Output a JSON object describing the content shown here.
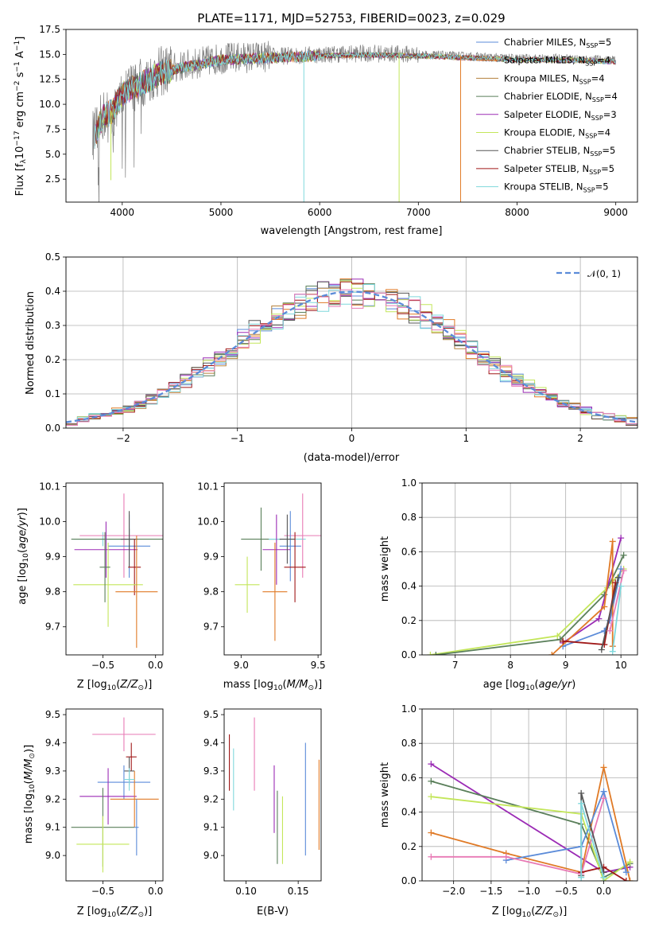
{
  "colors": {
    "chabrier_miles": "#5b8bd9",
    "salpeter_miles": "#e07a26",
    "kroupa_miles": "#b5813b",
    "chabrier_elodie": "#5a7f5a",
    "salpeter_elodie": "#9b2bb5",
    "kroupa_elodie": "#c3e65a",
    "chabrier_stelib": "#555555",
    "salpeter_stelib": "#a01818",
    "kroupa_stelib": "#7fd8dc",
    "pink": "#e87ab5",
    "data": "#808080",
    "gauss": "#5b8bd9",
    "grid": "#b0b0b0"
  },
  "chart_data": [
    {
      "id": "spectrum",
      "type": "line",
      "title": "PLATE=1171, MJD=52753, FIBERID=0023, z=0.029",
      "xlabel": "wavelength [Angstrom, rest frame]",
      "ylabel": "Flux [f",
      "ylabel_parts": [
        "Flux [f",
        "λ",
        "10",
        "−17",
        " erg cm",
        "−2",
        " s",
        "−1",
        " A",
        "−1",
        "]"
      ],
      "xlim": [
        3430,
        9220
      ],
      "ylim": [
        0.2,
        17.5
      ],
      "xticks": [
        4000,
        5000,
        6000,
        7000,
        8000,
        9000
      ],
      "yticks": [
        2.5,
        5.0,
        7.5,
        10.0,
        12.5,
        15.0,
        17.5
      ],
      "ytick_labels": [
        "2.5",
        "5.0",
        "7.5",
        "10.0",
        "12.5",
        "15.0",
        "17.5"
      ],
      "legend_position": "upper right",
      "legend": [
        {
          "pre": "Chabrier MILES, N",
          "sub": "SSP",
          "post": "=5",
          "color": "chabrier_miles"
        },
        {
          "pre": "Salpeter MILES, N",
          "sub": "SSP",
          "post": "=4",
          "color": "salpeter_miles"
        },
        {
          "pre": "Kroupa MILES, N",
          "sub": "SSP",
          "post": "=4",
          "color": "kroupa_miles"
        },
        {
          "pre": "Chabrier ELODIE, N",
          "sub": "SSP",
          "post": "=4",
          "color": "chabrier_elodie"
        },
        {
          "pre": "Salpeter ELODIE, N",
          "sub": "SSP",
          "post": "=3",
          "color": "salpeter_elodie"
        },
        {
          "pre": "Kroupa ELODIE, N",
          "sub": "SSP",
          "post": "=4",
          "color": "kroupa_elodie"
        },
        {
          "pre": "Chabrier STELIB, N",
          "sub": "SSP",
          "post": "=5",
          "color": "chabrier_stelib"
        },
        {
          "pre": "Salpeter STELIB, N",
          "sub": "SSP",
          "post": "=5",
          "color": "salpeter_stelib"
        },
        {
          "pre": "Kroupa STELIB, N",
          "sub": "SSP",
          "post": "=5",
          "color": "kroupa_stelib"
        }
      ],
      "continuum": [
        [
          3720,
          7.0
        ],
        [
          3800,
          8.8
        ],
        [
          3900,
          9.5
        ],
        [
          4000,
          11.2
        ],
        [
          4200,
          12.3
        ],
        [
          4400,
          13.3
        ],
        [
          4600,
          13.8
        ],
        [
          4800,
          14.2
        ],
        [
          5000,
          14.6
        ],
        [
          5500,
          14.8
        ],
        [
          6000,
          15.0
        ],
        [
          6500,
          15.1
        ],
        [
          7000,
          15.0
        ],
        [
          7500,
          14.8
        ],
        [
          8000,
          14.6
        ],
        [
          8500,
          14.6
        ],
        [
          9000,
          14.4
        ]
      ],
      "dips": [
        {
          "x": 5840,
          "y": 0.2,
          "color": "kroupa_stelib"
        },
        {
          "x": 6805,
          "y": 0.2,
          "color": "kroupa_elodie"
        },
        {
          "x": 7428,
          "y": 0.2,
          "color": "salpeter_miles"
        },
        {
          "x": 3885,
          "y": 2.4,
          "color": "kroupa_elodie"
        }
      ]
    },
    {
      "id": "residuals",
      "type": "histogram",
      "xlabel": "(data-model)/error",
      "ylabel": "Normed distribution",
      "xlim": [
        -2.5,
        2.5
      ],
      "ylim": [
        0.0,
        0.5
      ],
      "xticks": [
        -2,
        -1,
        0,
        1,
        2
      ],
      "xtick_labels": [
        "−2",
        "−1",
        "0",
        "1",
        "2"
      ],
      "yticks": [
        0.0,
        0.1,
        0.2,
        0.3,
        0.4,
        0.5
      ],
      "ytick_labels": [
        "0.0",
        "0.1",
        "0.2",
        "0.3",
        "0.4",
        "0.5"
      ],
      "bin_width": 0.1,
      "legend_label": "𝒩(0, 1)",
      "legend_position": "upper right",
      "grid": true
    },
    {
      "id": "age_vs_Z",
      "type": "errorbar",
      "xlabel": "Z [log",
      "ylabel": "age  [log",
      "xlim": [
        -0.85,
        0.07
      ],
      "ylim": [
        9.62,
        10.11
      ],
      "xticks": [
        -0.5,
        0.0
      ],
      "xtick_labels": [
        "−0.5",
        "0.0"
      ],
      "yticks": [
        9.7,
        9.8,
        9.9,
        10.0,
        10.1
      ],
      "ytick_labels": [
        "9.7",
        "9.8",
        "9.9",
        "10.0",
        "10.1"
      ],
      "points": [
        {
          "x": -0.5,
          "xerr": 0.28,
          "y": 9.95,
          "yerr": 0.02,
          "color": "kroupa_stelib"
        },
        {
          "x": -0.25,
          "xerr": 0.55,
          "y": 9.95,
          "yerr": 0.03,
          "color": "chabrier_elodie"
        },
        {
          "x": -0.3,
          "xerr": 0.42,
          "y": 9.96,
          "yerr": 0.12,
          "color": "pink"
        },
        {
          "x": -0.25,
          "xerr": 0.2,
          "y": 9.93,
          "yerr": 0.09,
          "color": "chabrier_miles"
        },
        {
          "x": -0.47,
          "xerr": 0.3,
          "y": 9.92,
          "yerr": 0.08,
          "color": "salpeter_elodie"
        },
        {
          "x": -0.25,
          "xerr": 0.08,
          "y": 9.95,
          "yerr": 0.08,
          "color": "chabrier_stelib"
        },
        {
          "x": -0.2,
          "xerr": 0.06,
          "y": 9.87,
          "yerr": 0.08,
          "color": "salpeter_stelib"
        },
        {
          "x": -0.45,
          "xerr": 0.33,
          "y": 9.82,
          "yerr": 0.12,
          "color": "kroupa_elodie"
        },
        {
          "x": -0.18,
          "xerr": 0.2,
          "y": 9.8,
          "yerr": 0.16,
          "color": "salpeter_miles"
        },
        {
          "x": -0.48,
          "xerr": 0.05,
          "y": 9.87,
          "yerr": 0.1,
          "color": "chabrier_elodie"
        }
      ]
    },
    {
      "id": "age_vs_mass",
      "type": "errorbar",
      "xlabel": "mass [log",
      "xlim": [
        8.89,
        9.52
      ],
      "ylim": [
        9.62,
        10.11
      ],
      "xticks": [
        9.0,
        9.5
      ],
      "xtick_labels": [
        "9.0",
        "9.5"
      ],
      "yticks": [
        9.7,
        9.8,
        9.9,
        10.0,
        10.1
      ],
      "ytick_labels": [
        "9.7",
        "9.8",
        "9.9",
        "10.0",
        "10.1"
      ],
      "points": [
        {
          "x": 9.13,
          "xerr": 0.13,
          "y": 9.95,
          "yerr": 0.09,
          "color": "chabrier_elodie"
        },
        {
          "x": 9.3,
          "xerr": 0.12,
          "y": 9.95,
          "yerr": 0.02,
          "color": "kroupa_stelib"
        },
        {
          "x": 9.4,
          "xerr": 0.12,
          "y": 9.96,
          "yerr": 0.12,
          "color": "pink"
        },
        {
          "x": 9.32,
          "xerr": 0.07,
          "y": 9.93,
          "yerr": 0.1,
          "color": "chabrier_miles"
        },
        {
          "x": 9.23,
          "xerr": 0.09,
          "y": 9.92,
          "yerr": 0.1,
          "color": "salpeter_elodie"
        },
        {
          "x": 9.3,
          "xerr": 0.05,
          "y": 9.95,
          "yerr": 0.07,
          "color": "chabrier_stelib"
        },
        {
          "x": 9.35,
          "xerr": 0.07,
          "y": 9.87,
          "yerr": 0.1,
          "color": "salpeter_stelib"
        },
        {
          "x": 9.04,
          "xerr": 0.08,
          "y": 9.82,
          "yerr": 0.08,
          "color": "kroupa_elodie"
        },
        {
          "x": 9.22,
          "xerr": 0.08,
          "y": 9.8,
          "yerr": 0.14,
          "color": "salpeter_miles"
        }
      ]
    },
    {
      "id": "weight_vs_age",
      "type": "line",
      "xlabel": "age  [log",
      "ylabel": "mass weight",
      "xlim": [
        6.4,
        10.3
      ],
      "ylim": [
        0.0,
        1.0
      ],
      "xticks": [
        7,
        8,
        9,
        10
      ],
      "yticks": [
        0.0,
        0.2,
        0.4,
        0.6,
        0.8,
        1.0
      ],
      "ytick_labels": [
        "0.0",
        "0.2",
        "0.4",
        "0.6",
        "0.8",
        "1.0"
      ],
      "grid": true,
      "series": [
        {
          "color": "kroupa_elodie",
          "x": [
            6.55,
            8.85,
            9.75,
            10.05
          ],
          "y": [
            0.0,
            0.11,
            0.39,
            0.5
          ]
        },
        {
          "color": "chabrier_elodie",
          "x": [
            6.65,
            8.9,
            9.7,
            10.05
          ],
          "y": [
            0.0,
            0.09,
            0.35,
            0.58
          ]
        },
        {
          "color": "salpeter_elodie",
          "x": [
            8.95,
            9.6,
            10.0
          ],
          "y": [
            0.07,
            0.21,
            0.68
          ]
        },
        {
          "color": "chabrier_miles",
          "x": [
            8.95,
            9.7,
            9.8,
            10.0
          ],
          "y": [
            0.05,
            0.14,
            0.2,
            0.5
          ]
        },
        {
          "color": "salpeter_miles",
          "x": [
            8.75,
            9.7,
            9.85,
            9.85
          ],
          "y": [
            0.0,
            0.28,
            0.66,
            0.05
          ]
        },
        {
          "color": "salpeter_stelib",
          "x": [
            8.95,
            9.7,
            9.9
          ],
          "y": [
            0.08,
            0.06,
            0.42
          ]
        },
        {
          "color": "pink",
          "x": [
            9.8,
            10.05
          ],
          "y": [
            0.14,
            0.49
          ]
        },
        {
          "color": "chabrier_stelib",
          "x": [
            9.65,
            9.95
          ],
          "y": [
            0.03,
            0.45
          ]
        },
        {
          "color": "kroupa_stelib",
          "x": [
            9.85,
            10.0
          ],
          "y": [
            0.02,
            0.4
          ]
        }
      ]
    },
    {
      "id": "mass_vs_Z",
      "type": "errorbar",
      "xlabel": "Z [log",
      "ylabel": "mass [log",
      "xlim": [
        -0.85,
        0.07
      ],
      "ylim": [
        8.91,
        9.52
      ],
      "xticks": [
        -0.5,
        0.0
      ],
      "xtick_labels": [
        "−0.5",
        "0.0"
      ],
      "yticks": [
        9.0,
        9.1,
        9.2,
        9.3,
        9.4,
        9.5
      ],
      "ytick_labels": [
        "9.0",
        "9.1",
        "9.2",
        "9.3",
        "9.4",
        "9.5"
      ],
      "points": [
        {
          "x": -0.3,
          "xerr": 0.3,
          "y": 9.43,
          "yerr": 0.06,
          "color": "pink"
        },
        {
          "x": -0.23,
          "xerr": 0.05,
          "y": 9.35,
          "yerr": 0.05,
          "color": "salpeter_stelib"
        },
        {
          "x": -0.25,
          "xerr": 0.05,
          "y": 9.3,
          "yerr": 0.05,
          "color": "chabrier_stelib"
        },
        {
          "x": -0.3,
          "xerr": 0.25,
          "y": 9.26,
          "yerr": 0.06,
          "color": "chabrier_miles"
        },
        {
          "x": -0.45,
          "xerr": 0.27,
          "y": 9.21,
          "yerr": 0.1,
          "color": "salpeter_elodie"
        },
        {
          "x": -0.2,
          "xerr": 0.23,
          "y": 9.2,
          "yerr": 0.1,
          "color": "salpeter_miles"
        },
        {
          "x": -0.5,
          "xerr": 0.3,
          "y": 9.1,
          "yerr": 0.14,
          "color": "chabrier_elodie"
        },
        {
          "x": -0.5,
          "xerr": 0.25,
          "y": 9.04,
          "yerr": 0.1,
          "color": "kroupa_elodie"
        },
        {
          "x": -0.25,
          "xerr": 0.05,
          "y": 9.27,
          "yerr": 0.04,
          "color": "kroupa_stelib"
        },
        {
          "x": -0.18,
          "xerr": 0.02,
          "y": 9.1,
          "yerr": 0.1,
          "color": "chabrier_miles"
        }
      ]
    },
    {
      "id": "mass_vs_EBV",
      "type": "errorbar",
      "xlabel": "E(B-V)",
      "xlim": [
        0.079,
        0.172
      ],
      "ylim": [
        8.91,
        9.52
      ],
      "xticks": [
        0.1,
        0.15
      ],
      "xtick_labels": [
        "0.10",
        "0.15"
      ],
      "yticks": [
        9.0,
        9.1,
        9.2,
        9.3,
        9.4,
        9.5
      ],
      "ytick_labels": [
        "9.0",
        "9.1",
        "9.2",
        "9.3",
        "9.4",
        "9.5"
      ],
      "points": [
        {
          "x": 0.084,
          "xerr": 0,
          "y": 9.33,
          "yerr": 0.1,
          "color": "salpeter_stelib"
        },
        {
          "x": 0.088,
          "xerr": 0,
          "y": 9.27,
          "yerr": 0.11,
          "color": "kroupa_stelib"
        },
        {
          "x": 0.108,
          "xerr": 0,
          "y": 9.36,
          "yerr": 0.13,
          "color": "pink"
        },
        {
          "x": 0.127,
          "xerr": 0,
          "y": 9.2,
          "yerr": 0.12,
          "color": "salpeter_elodie"
        },
        {
          "x": 0.13,
          "xerr": 0,
          "y": 9.1,
          "yerr": 0.13,
          "color": "chabrier_elodie"
        },
        {
          "x": 0.135,
          "xerr": 0,
          "y": 9.09,
          "yerr": 0.12,
          "color": "kroupa_elodie"
        },
        {
          "x": 0.157,
          "xerr": 0,
          "y": 9.2,
          "yerr": 0.2,
          "color": "chabrier_miles"
        },
        {
          "x": 0.17,
          "xerr": 0,
          "y": 9.18,
          "yerr": 0.16,
          "color": "salpeter_miles"
        }
      ]
    },
    {
      "id": "weight_vs_Z",
      "type": "line",
      "xlabel": "Z [log",
      "ylabel": "mass weight",
      "xlim": [
        -2.42,
        0.45
      ],
      "ylim": [
        0.0,
        1.0
      ],
      "xticks": [
        -2.0,
        -1.5,
        -1.0,
        -0.5,
        0.0
      ],
      "xtick_labels": [
        "−2.0",
        "−1.5",
        "−1.0",
        "−0.5",
        "0.0"
      ],
      "yticks": [
        0.0,
        0.2,
        0.4,
        0.6,
        0.8,
        1.0
      ],
      "ytick_labels": [
        "0.0",
        "0.2",
        "0.4",
        "0.6",
        "0.8",
        "1.0"
      ],
      "grid": true,
      "series": [
        {
          "color": "salpeter_elodie",
          "x": [
            -2.3,
            0.0,
            0.35
          ],
          "y": [
            0.68,
            0.05,
            0.08
          ]
        },
        {
          "color": "chabrier_elodie",
          "x": [
            -2.3,
            -0.3,
            0.0,
            0.35
          ],
          "y": [
            0.58,
            0.33,
            0.02,
            0.1
          ]
        },
        {
          "color": "kroupa_elodie",
          "x": [
            -2.3,
            -0.3,
            0.0,
            0.35
          ],
          "y": [
            0.49,
            0.39,
            0.0,
            0.11
          ]
        },
        {
          "color": "salpeter_miles",
          "x": [
            -2.3,
            -1.3,
            -0.3,
            0.0,
            0.35
          ],
          "y": [
            0.28,
            0.16,
            0.05,
            0.66,
            0.0
          ]
        },
        {
          "color": "chabrier_miles",
          "x": [
            -1.3,
            -0.3,
            0.0,
            0.3
          ],
          "y": [
            0.12,
            0.2,
            0.52,
            0.05
          ]
        },
        {
          "color": "pink",
          "x": [
            -2.3,
            -1.3,
            -0.3,
            0.0
          ],
          "y": [
            0.14,
            0.14,
            0.04,
            0.48
          ]
        },
        {
          "color": "salpeter_stelib",
          "x": [
            -0.3,
            0.0,
            0.3
          ],
          "y": [
            0.05,
            0.08,
            0.0
          ]
        },
        {
          "color": "chabrier_stelib",
          "x": [
            -0.3,
            -0.3,
            0.0
          ],
          "y": [
            0.03,
            0.51,
            0.05
          ]
        },
        {
          "color": "kroupa_stelib",
          "x": [
            -0.3,
            -0.3,
            0.0
          ],
          "y": [
            0.02,
            0.45,
            0.02
          ]
        }
      ]
    }
  ]
}
